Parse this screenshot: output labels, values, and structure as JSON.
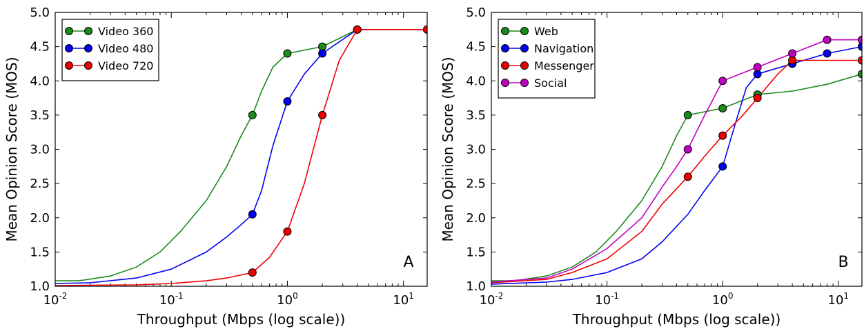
{
  "chart_data": [
    {
      "type": "line",
      "panel_label": "A",
      "xlabel": "Throughput (Mbps (log scale))",
      "ylabel": "Mean Opinion Score (MOS)",
      "x_scale": "log",
      "xlim": [
        0.01,
        16
      ],
      "ylim": [
        1.0,
        5.0
      ],
      "x_ticks": [
        {
          "base": "10",
          "exp": "-2",
          "value": 0.01
        },
        {
          "base": "10",
          "exp": "-1",
          "value": 0.1
        },
        {
          "base": "10",
          "exp": "0",
          "value": 1
        },
        {
          "base": "10",
          "exp": "1",
          "value": 10
        }
      ],
      "y_ticks": [
        "1.0",
        "1.5",
        "2.0",
        "2.5",
        "3.0",
        "3.5",
        "4.0",
        "4.5",
        "5.0"
      ],
      "legend_position": "top-left",
      "grid": false,
      "series": [
        {
          "name": "Video 360",
          "color": "#1a8a1a",
          "curve": [
            [
              0.01,
              1.08
            ],
            [
              0.016,
              1.08
            ],
            [
              0.03,
              1.15
            ],
            [
              0.05,
              1.28
            ],
            [
              0.08,
              1.5
            ],
            [
              0.12,
              1.8
            ],
            [
              0.2,
              2.25
            ],
            [
              0.3,
              2.75
            ],
            [
              0.4,
              3.2
            ],
            [
              0.5,
              3.5
            ],
            [
              0.6,
              3.85
            ],
            [
              0.75,
              4.2
            ],
            [
              1,
              4.4
            ],
            [
              2,
              4.5
            ],
            [
              4,
              4.75
            ],
            [
              16,
              4.75
            ]
          ],
          "markers": [
            [
              0.5,
              3.5
            ],
            [
              1,
              4.4
            ],
            [
              2,
              4.5
            ],
            [
              4,
              4.75
            ],
            [
              16,
              4.75
            ]
          ]
        },
        {
          "name": "Video 480",
          "color": "#0000ee",
          "curve": [
            [
              0.01,
              1.04
            ],
            [
              0.02,
              1.05
            ],
            [
              0.05,
              1.12
            ],
            [
              0.1,
              1.25
            ],
            [
              0.2,
              1.5
            ],
            [
              0.3,
              1.72
            ],
            [
              0.4,
              1.9
            ],
            [
              0.5,
              2.05
            ],
            [
              0.6,
              2.4
            ],
            [
              0.75,
              3.05
            ],
            [
              1,
              3.7
            ],
            [
              1.4,
              4.1
            ],
            [
              2,
              4.4
            ],
            [
              4,
              4.75
            ],
            [
              16,
              4.75
            ]
          ],
          "markers": [
            [
              0.5,
              2.05
            ],
            [
              1,
              3.7
            ],
            [
              2,
              4.4
            ],
            [
              4,
              4.75
            ],
            [
              16,
              4.75
            ]
          ]
        },
        {
          "name": "Video 720",
          "color": "#ee0000",
          "curve": [
            [
              0.01,
              1.01
            ],
            [
              0.05,
              1.02
            ],
            [
              0.1,
              1.04
            ],
            [
              0.2,
              1.08
            ],
            [
              0.3,
              1.12
            ],
            [
              0.5,
              1.2
            ],
            [
              0.7,
              1.42
            ],
            [
              1,
              1.8
            ],
            [
              1.4,
              2.5
            ],
            [
              2,
              3.5
            ],
            [
              2.8,
              4.3
            ],
            [
              4,
              4.75
            ],
            [
              16,
              4.75
            ]
          ],
          "markers": [
            [
              0.5,
              1.2
            ],
            [
              1,
              1.8
            ],
            [
              2,
              3.5
            ],
            [
              4,
              4.75
            ],
            [
              16,
              4.75
            ]
          ]
        }
      ]
    },
    {
      "type": "line",
      "panel_label": "B",
      "xlabel": "Throughput (Mbps (log scale))",
      "ylabel": "Mean Opinion Score (MOS)",
      "x_scale": "log",
      "xlim": [
        0.01,
        16
      ],
      "ylim": [
        1.0,
        5.0
      ],
      "x_ticks": [
        {
          "base": "10",
          "exp": "-2",
          "value": 0.01
        },
        {
          "base": "10",
          "exp": "-1",
          "value": 0.1
        },
        {
          "base": "10",
          "exp": "0",
          "value": 1
        },
        {
          "base": "10",
          "exp": "1",
          "value": 10
        }
      ],
      "y_ticks": [
        "1.0",
        "1.5",
        "2.0",
        "2.5",
        "3.0",
        "3.5",
        "4.0",
        "4.5",
        "5.0"
      ],
      "legend_position": "top-left",
      "grid": false,
      "series": [
        {
          "name": "Web",
          "color": "#1a8a1a",
          "curve": [
            [
              0.01,
              1.08
            ],
            [
              0.016,
              1.08
            ],
            [
              0.03,
              1.15
            ],
            [
              0.05,
              1.28
            ],
            [
              0.08,
              1.5
            ],
            [
              0.12,
              1.8
            ],
            [
              0.2,
              2.25
            ],
            [
              0.3,
              2.75
            ],
            [
              0.4,
              3.2
            ],
            [
              0.5,
              3.5
            ],
            [
              1,
              3.6
            ],
            [
              2,
              3.8
            ],
            [
              4,
              3.85
            ],
            [
              8,
              3.95
            ],
            [
              16,
              4.1
            ]
          ],
          "markers": [
            [
              0.5,
              3.5
            ],
            [
              1,
              3.6
            ],
            [
              2,
              3.8
            ],
            [
              16,
              4.1
            ]
          ]
        },
        {
          "name": "Navigation",
          "color": "#0000ee",
          "curve": [
            [
              0.01,
              1.03
            ],
            [
              0.03,
              1.06
            ],
            [
              0.05,
              1.1
            ],
            [
              0.1,
              1.2
            ],
            [
              0.2,
              1.4
            ],
            [
              0.3,
              1.65
            ],
            [
              0.5,
              2.05
            ],
            [
              0.7,
              2.4
            ],
            [
              1,
              2.75
            ],
            [
              1.3,
              3.4
            ],
            [
              1.6,
              3.9
            ],
            [
              2,
              4.1
            ],
            [
              4,
              4.25
            ],
            [
              8,
              4.4
            ],
            [
              16,
              4.5
            ]
          ],
          "markers": [
            [
              1,
              2.75
            ],
            [
              2,
              4.1
            ],
            [
              4,
              4.25
            ],
            [
              8,
              4.4
            ],
            [
              16,
              4.5
            ]
          ]
        },
        {
          "name": "Messenger",
          "color": "#ee0000",
          "curve": [
            [
              0.01,
              1.05
            ],
            [
              0.03,
              1.1
            ],
            [
              0.05,
              1.2
            ],
            [
              0.1,
              1.4
            ],
            [
              0.2,
              1.8
            ],
            [
              0.3,
              2.2
            ],
            [
              0.5,
              2.6
            ],
            [
              0.7,
              2.9
            ],
            [
              1,
              3.2
            ],
            [
              1.5,
              3.5
            ],
            [
              2,
              3.75
            ],
            [
              3,
              4.1
            ],
            [
              4,
              4.3
            ],
            [
              8,
              4.3
            ],
            [
              16,
              4.3
            ]
          ],
          "markers": [
            [
              0.5,
              2.6
            ],
            [
              1,
              3.2
            ],
            [
              2,
              3.75
            ],
            [
              4,
              4.3
            ],
            [
              16,
              4.3
            ]
          ]
        },
        {
          "name": "Social",
          "color": "#c000c0",
          "curve": [
            [
              0.01,
              1.06
            ],
            [
              0.03,
              1.12
            ],
            [
              0.05,
              1.25
            ],
            [
              0.1,
              1.55
            ],
            [
              0.2,
              2.0
            ],
            [
              0.3,
              2.45
            ],
            [
              0.4,
              2.75
            ],
            [
              0.5,
              3.0
            ],
            [
              0.7,
              3.5
            ],
            [
              1,
              4.0
            ],
            [
              2,
              4.2
            ],
            [
              4,
              4.4
            ],
            [
              8,
              4.6
            ],
            [
              16,
              4.6
            ]
          ],
          "markers": [
            [
              0.5,
              3.0
            ],
            [
              1,
              4.0
            ],
            [
              2,
              4.2
            ],
            [
              4,
              4.4
            ],
            [
              8,
              4.6
            ],
            [
              16,
              4.6
            ]
          ]
        }
      ]
    }
  ]
}
